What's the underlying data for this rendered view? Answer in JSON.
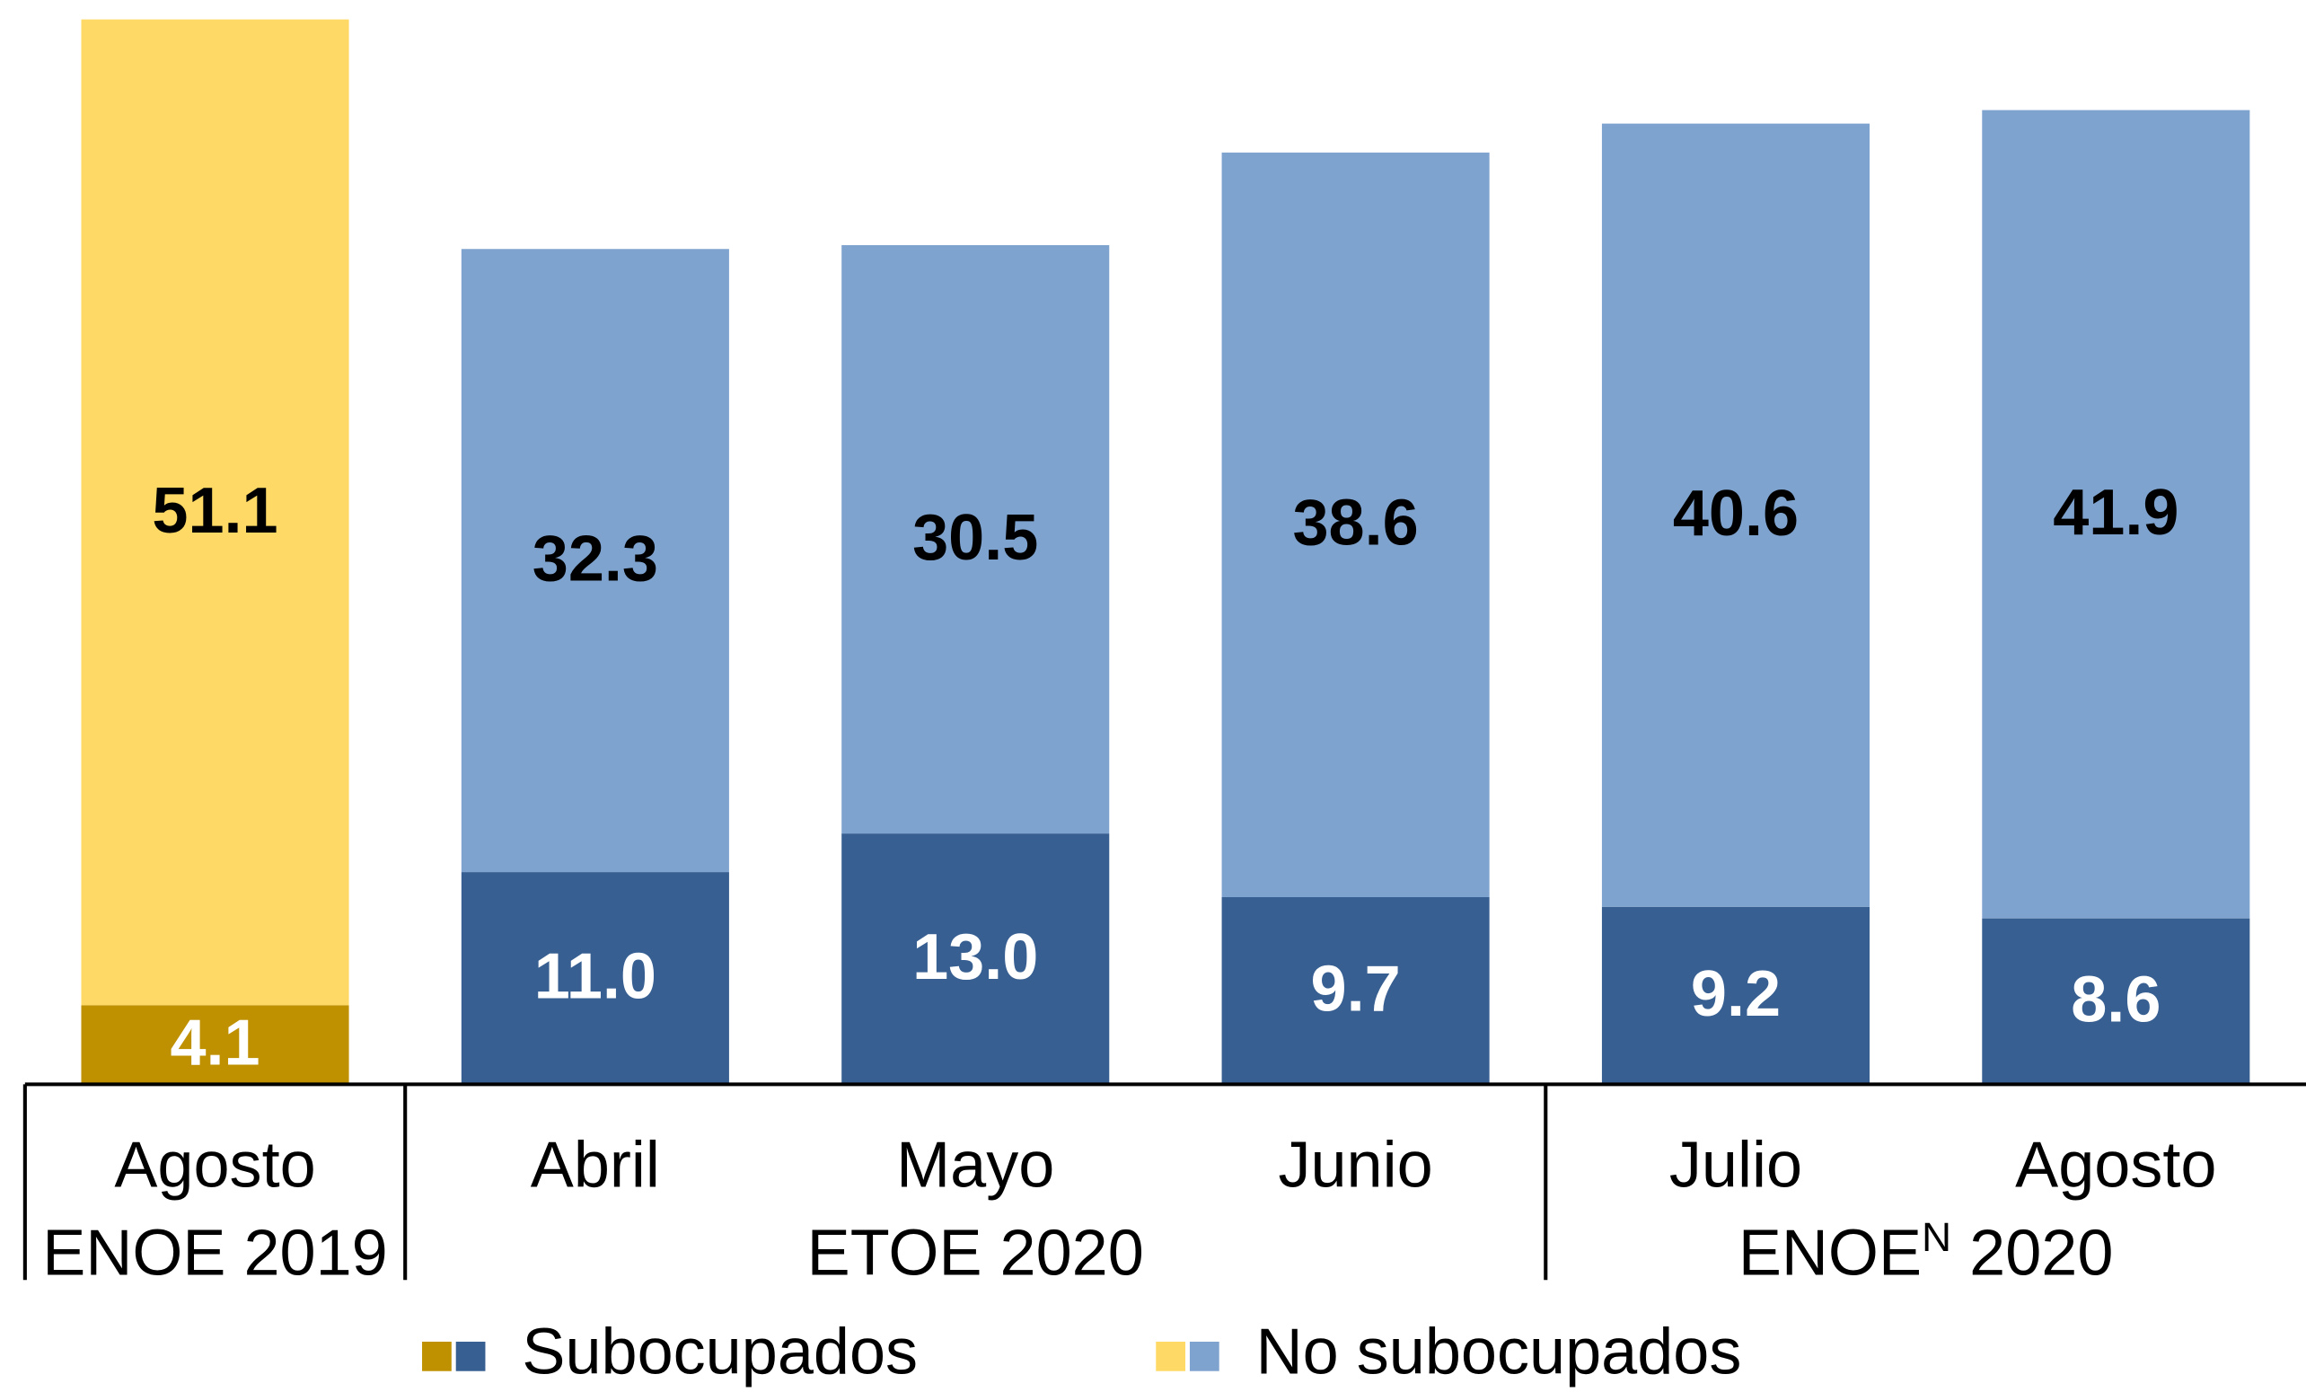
{
  "chart_data": {
    "type": "stacked_bar",
    "categories": [
      "Agosto",
      "Abril",
      "Mayo",
      "Junio",
      "Julio",
      "Agosto"
    ],
    "groups": [
      {
        "label": "ENOE 2019",
        "count": 1
      },
      {
        "label": "ETOE 2020",
        "count": 3
      },
      {
        "label": "ENOE",
        "superscript": "N",
        "label_end": " 2020",
        "count": 2
      }
    ],
    "series": [
      {
        "name": "Subocupados",
        "colors": [
          "#bf9000",
          "#375f91",
          "#375f91",
          "#375f91",
          "#375f91",
          "#375f91"
        ],
        "values": [
          4.1,
          11,
          13,
          9.7,
          9.2,
          8.6
        ],
        "value_labels": [
          "4.1",
          "11.0",
          "13.0",
          "9.7",
          "9.2",
          "8.6"
        ],
        "label_color": "#ffffff"
      },
      {
        "name": "No subocupados",
        "colors": [
          "#ffd966",
          "#7fa3cf",
          "#7fa3cf",
          "#7fa3cf",
          "#7fa3cf",
          "#7fa3cf"
        ],
        "values": [
          51.1,
          32.3,
          30.5,
          38.6,
          40.6,
          41.9
        ],
        "value_labels": [
          "51.1",
          "32.3",
          "30.5",
          "38.6",
          "40.6",
          "41.9"
        ],
        "label_color": "#000000"
      }
    ],
    "ylim": [
      0,
      55.2
    ],
    "legend": "bottom"
  }
}
